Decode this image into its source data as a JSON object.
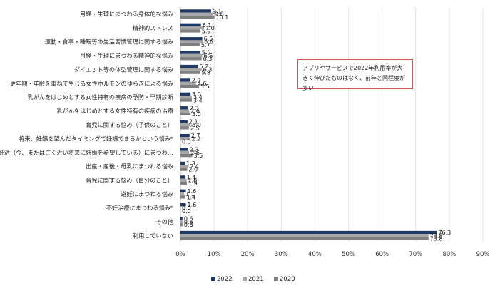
{
  "chart_data": {
    "type": "bar",
    "orientation": "horizontal",
    "categories": [
      "月経・生理にまつわる身体的な悩み",
      "精神的ストレス",
      "運動・食事・睡眠等の生活習慣管理に関する悩み",
      "月経・生理にまつわる精神的な悩み",
      "ダイエット等の体型管理に関する悩み",
      "更年期・年齢を重ねて生じる女性ホルモンのゆらぎによる悩み",
      "乳がんをはじめとする女性特有の疾病の予防・早期診断",
      "乳がんをはじめとする女性特有の疾病の治療",
      "育児に関する悩み（子供のこと）",
      "将来、妊娠を望んだタイミングで妊娠できるかという悩み*",
      "妊活（今、またはごく近い将来に妊娠を希望している）にまつわ…",
      "出産・産後・母乳にまつわる悩み",
      "育児に関する悩み（自分のこと）",
      "避妊にまつわる悩み",
      "不妊治療にまつわる悩み*",
      "その他",
      "利用していない"
    ],
    "series": [
      {
        "name": "2022",
        "color": "#1f3864",
        "values": [
          9.1,
          6.1,
          6.5,
          5.9,
          5.2,
          2.9,
          3.0,
          2.3,
          2.1,
          2.7,
          2.3,
          1.3,
          1.4,
          1.6,
          1.6,
          0.6,
          76.3
        ],
        "labels": [
          "9.1",
          "6.1",
          "6.5",
          "5.9",
          "5.2",
          "2.9",
          "3.0",
          "2.3",
          "2.1",
          "2.7",
          "2.3",
          "1.3",
          "1.4",
          "1.6",
          "1.6",
          "0.6",
          "76.3"
        ]
      },
      {
        "name": "2021",
        "color": "#a6a6a6",
        "values": [
          9.8,
          7.0,
          6.6,
          6.5,
          6.3,
          4.6,
          3.4,
          2.6,
          3.0,
          2.9,
          2.6,
          2.4,
          1.8,
          1.1,
          0.0,
          0.6,
          73.8
        ],
        "labels": [
          "9.8",
          "7.0",
          "6.6",
          "6.5",
          "6.3",
          "4.6",
          "3.4",
          "2.6",
          "3.0",
          "2.9",
          "2.6",
          "2.4",
          "1.8",
          "1.1",
          "0.0",
          "0.6",
          "73.8"
        ]
      },
      {
        "name": "2020",
        "color": "#7f7f7f",
        "values": [
          10.1,
          5.9,
          5.7,
          6.3,
          5.8,
          5.5,
          3.4,
          3.0,
          2.5,
          0.0,
          3.5,
          2.0,
          1.9,
          1.4,
          0.0,
          0.6,
          73.8
        ],
        "labels": [
          "10.1",
          "5.9",
          "5.7",
          "6.3",
          "5.8",
          "5.5",
          "3.4",
          "3.0",
          "2.5",
          "0.0",
          "3.5",
          "2.0",
          "1.9",
          "1.4",
          "0.0",
          "0.6",
          "73.8"
        ]
      }
    ],
    "x_ticks": [
      "0%",
      "10%",
      "20%",
      "30%",
      "40%",
      "50%",
      "60%",
      "70%",
      "80%",
      "90%"
    ],
    "xlim": [
      0,
      90
    ],
    "grid": true,
    "legend_position": "bottom-left",
    "annotation": "アプリやサービスで2022年利用率が大きく伸びたものはなく、前年と同程度が多い"
  }
}
